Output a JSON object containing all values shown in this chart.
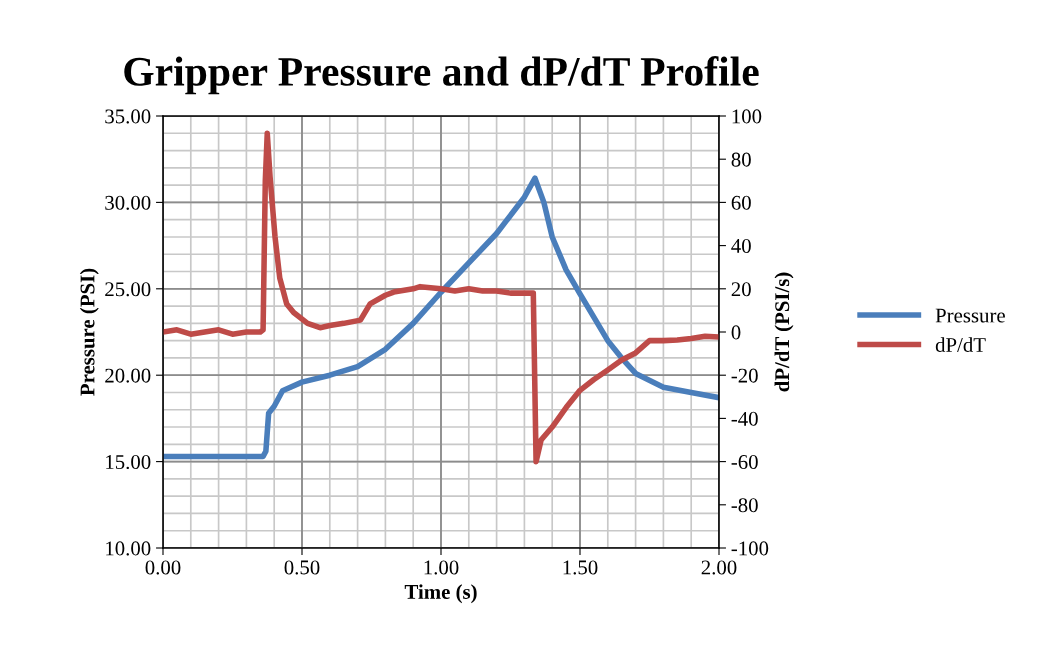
{
  "chart_data": {
    "type": "line",
    "title": "Gripper Pressure and dP/dT Profile",
    "xlabel": "Time (s)",
    "ylabel": "Pressure (PSI)",
    "y2label": "dP/dT (PSI/s)",
    "xlim": [
      0,
      2
    ],
    "xticks": [
      {
        "value": 0,
        "label": "0.00"
      },
      {
        "value": 0.5,
        "label": "0.50"
      },
      {
        "value": 1,
        "label": "1.00"
      },
      {
        "value": 1.5,
        "label": "1.50"
      },
      {
        "value": 2,
        "label": "2.00"
      }
    ],
    "ylim": [
      10,
      35
    ],
    "yticks": [
      {
        "value": 10,
        "label": "10.00"
      },
      {
        "value": 15,
        "label": "15.00"
      },
      {
        "value": 20,
        "label": "20.00"
      },
      {
        "value": 25,
        "label": "25.00"
      },
      {
        "value": 30,
        "label": "30.00"
      },
      {
        "value": 35,
        "label": "35.00"
      }
    ],
    "y2lim": [
      -100,
      100
    ],
    "y2ticks": [
      -100,
      -80,
      -60,
      -40,
      -20,
      0,
      20,
      40,
      60,
      80,
      100
    ],
    "grid": true,
    "legend": "right",
    "marker": "none",
    "line_style": "solid",
    "series": [
      {
        "name": "Pressure",
        "color": "#4a7ebb",
        "x": [
          0,
          0.2,
          0.36,
          0.37,
          0.38,
          0.4,
          0.43,
          0.5,
          0.6,
          0.7,
          0.8,
          0.9,
          1.0,
          1.1,
          1.2,
          1.3,
          1.338,
          1.37,
          1.4,
          1.45,
          1.5,
          1.6,
          1.655,
          1.7,
          1.8,
          1.9,
          2.0
        ],
        "values": [
          15.3,
          15.3,
          15.3,
          15.6,
          17.8,
          18.2,
          19.1,
          19.6,
          20.0,
          20.5,
          21.5,
          23.0,
          24.8,
          26.5,
          28.2,
          30.3,
          31.4,
          30.0,
          28.0,
          26.1,
          24.7,
          22.0,
          20.9,
          20.1,
          19.3,
          19.0,
          18.7
        ]
      },
      {
        "name": "dP/dT",
        "color": "#be4b48",
        "axis": "y2",
        "x": [
          0,
          0.05,
          0.1,
          0.15,
          0.2,
          0.25,
          0.3,
          0.35,
          0.36,
          0.368,
          0.375,
          0.385,
          0.403,
          0.42,
          0.445,
          0.47,
          0.52,
          0.565,
          0.6,
          0.65,
          0.71,
          0.745,
          0.8,
          0.83,
          0.9,
          0.925,
          1.0,
          1.05,
          1.1,
          1.15,
          1.2,
          1.25,
          1.3,
          1.332,
          1.342,
          1.36,
          1.4,
          1.45,
          1.5,
          1.55,
          1.6,
          1.65,
          1.7,
          1.75,
          1.8,
          1.85,
          1.9,
          1.95,
          2.0
        ],
        "values": [
          0,
          1,
          -1,
          0,
          1,
          -1,
          0,
          0,
          1,
          70,
          92,
          72,
          44,
          25,
          13,
          9,
          4,
          2,
          3,
          4,
          5.5,
          13,
          17,
          18.5,
          20,
          21,
          20,
          19,
          20,
          19,
          19,
          18,
          18,
          18,
          -60,
          -50,
          -44,
          -35,
          -27,
          -22,
          -17.6,
          -13,
          -9.7,
          -4,
          -4,
          -3.7,
          -3,
          -2,
          -2.3
        ]
      }
    ]
  }
}
